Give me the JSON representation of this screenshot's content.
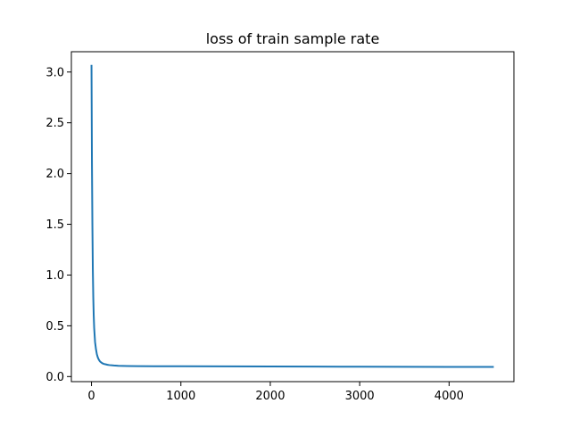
{
  "chart_data": {
    "type": "line",
    "title": "loss of train sample rate",
    "xlabel": "",
    "ylabel": "",
    "xlim": [
      -225,
      4725
    ],
    "ylim": [
      -0.05,
      3.2
    ],
    "xticks": [
      0,
      1000,
      2000,
      3000,
      4000
    ],
    "xtick_labels": [
      "0",
      "1000",
      "2000",
      "3000",
      "4000"
    ],
    "yticks": [
      0.0,
      0.5,
      1.0,
      1.5,
      2.0,
      2.5,
      3.0
    ],
    "ytick_labels": [
      "0.0",
      "0.5",
      "1.0",
      "1.5",
      "2.0",
      "2.5",
      "3.0"
    ],
    "grid": false,
    "legend": "none",
    "series": [
      {
        "color": "#1f77b4",
        "x": [
          0,
          5,
          10,
          15,
          20,
          25,
          30,
          40,
          50,
          60,
          70,
          80,
          90,
          100,
          120,
          140,
          160,
          180,
          200,
          250,
          300,
          400,
          500,
          700,
          1000,
          1500,
          2000,
          2500,
          3000,
          3500,
          4000,
          4500
        ],
        "y": [
          3.07,
          2.1,
          1.5,
          1.05,
          0.78,
          0.6,
          0.48,
          0.34,
          0.27,
          0.22,
          0.19,
          0.17,
          0.155,
          0.145,
          0.132,
          0.124,
          0.12,
          0.116,
          0.113,
          0.109,
          0.106,
          0.104,
          0.103,
          0.102,
          0.101,
          0.1,
          0.099,
          0.098,
          0.097,
          0.096,
          0.095,
          0.095
        ]
      }
    ]
  }
}
